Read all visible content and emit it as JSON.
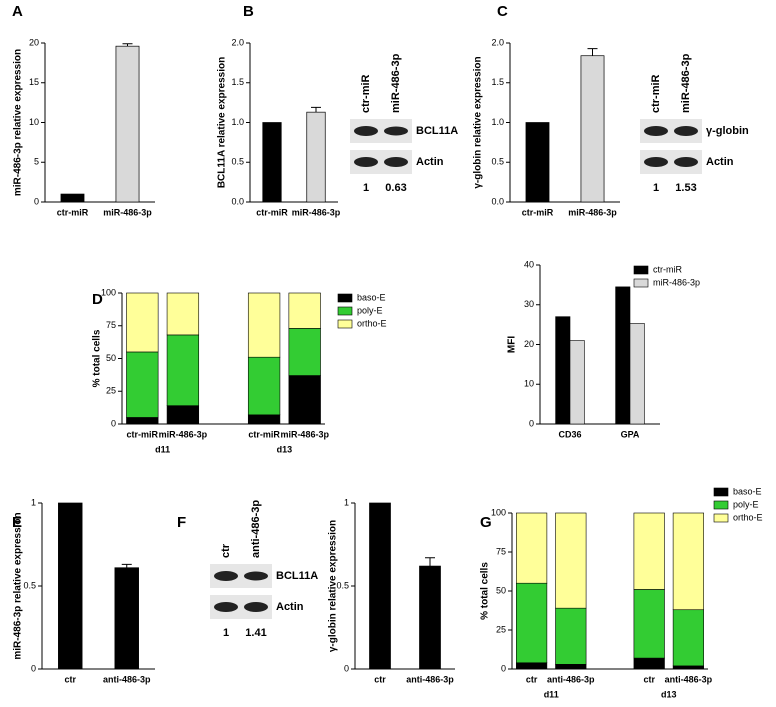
{
  "chart_data": [
    {
      "type": "bar",
      "title": "A",
      "ylabel": "miR-486-3p relative expression",
      "categories": [
        "ctr-miR",
        "miR-486-3p"
      ],
      "values": [
        1,
        19.6
      ],
      "errors": [
        null,
        0.3
      ],
      "colors": [
        "#000000",
        "#d9d9d9"
      ],
      "ylim": [
        0,
        20
      ],
      "yticks": [
        0,
        5,
        10,
        15,
        20
      ]
    },
    {
      "type": "bar",
      "title": "B",
      "ylabel": "BCL11A relative expression",
      "categories": [
        "ctr-miR",
        "miR-486-3p"
      ],
      "values": [
        1,
        1.13
      ],
      "errors": [
        null,
        0.06
      ],
      "colors": [
        "#000000",
        "#d9d9d9"
      ],
      "ylim": [
        0,
        2
      ],
      "yticks": [
        {
          "value": 0,
          "label": "0.0"
        },
        0.5,
        {
          "value": 1,
          "label": "1.0"
        },
        1.5,
        {
          "value": 2,
          "label": "2.0"
        }
      ]
    },
    {
      "type": "bar",
      "title": "C",
      "ylabel": "γ-globin relative expression",
      "categories": [
        "ctr-miR",
        "miR-486-3p"
      ],
      "values": [
        1,
        1.84
      ],
      "errors": [
        null,
        0.09
      ],
      "colors": [
        "#000000",
        "#d9d9d9"
      ],
      "ylim": [
        0,
        2
      ],
      "yticks": [
        {
          "value": 0,
          "label": "0.0"
        },
        0.5,
        {
          "value": 1,
          "label": "1.0"
        },
        1.5,
        {
          "value": 2,
          "label": "2.0"
        }
      ]
    },
    {
      "type": "stacked_bar",
      "title": "D",
      "ylabel": "% total cells",
      "categories": [
        "ctr-miR",
        "miR-486-3p",
        "ctr-miR",
        "miR-486-3p"
      ],
      "groups": [
        "d11",
        "d13"
      ],
      "series": [
        {
          "name": "baso-E",
          "color": "#000000",
          "values": [
            5,
            14,
            7,
            37
          ]
        },
        {
          "name": "poly-E",
          "color": "#33cc33",
          "values": [
            50,
            54,
            44,
            36
          ]
        },
        {
          "name": "ortho-E",
          "color": "#ffff99",
          "values": [
            45,
            32,
            49,
            27
          ]
        }
      ],
      "ylim": [
        0,
        100
      ],
      "yticks": [
        0,
        25,
        50,
        75,
        100
      ]
    },
    {
      "type": "grouped_bar",
      "ylabel": "MFI",
      "categories": [
        "CD36",
        "GPA"
      ],
      "series": [
        {
          "name": "ctr-miR",
          "color": "#000000",
          "values": [
            27,
            34.5
          ]
        },
        {
          "name": "miR-486-3p",
          "color": "#d9d9d9",
          "values": [
            21,
            25.3
          ]
        }
      ],
      "ylim": [
        0,
        40
      ],
      "yticks": [
        0,
        10,
        20,
        30,
        40
      ]
    },
    {
      "type": "bar",
      "title": "E",
      "ylabel": "miR-486-3p relative expression",
      "categories": [
        "ctr",
        "anti-486-3p"
      ],
      "values": [
        1,
        0.61
      ],
      "errors": [
        null,
        0.02
      ],
      "colors": [
        "#000000",
        "#000000"
      ],
      "ylim": [
        0,
        1
      ],
      "yticks": [
        0,
        0.5,
        1
      ]
    },
    {
      "type": "bar",
      "title": "F",
      "ylabel": "γ-globin relative expression",
      "categories": [
        "ctr",
        "anti-486-3p"
      ],
      "values": [
        1,
        0.62
      ],
      "errors": [
        null,
        0.05
      ],
      "colors": [
        "#000000",
        "#000000"
      ],
      "ylim": [
        0,
        1
      ],
      "yticks": [
        0,
        0.5,
        1
      ]
    },
    {
      "type": "stacked_bar",
      "title": "G",
      "ylabel": "% total cells",
      "categories": [
        "ctr",
        "anti-486-3p",
        "ctr",
        "anti-486-3p"
      ],
      "groups": [
        "d11",
        "d13"
      ],
      "series": [
        {
          "name": "baso-E",
          "color": "#000000",
          "values": [
            4,
            3,
            7,
            2
          ]
        },
        {
          "name": "poly-E",
          "color": "#33cc33",
          "values": [
            51,
            36,
            44,
            36
          ]
        },
        {
          "name": "ortho-E",
          "color": "#ffff99",
          "values": [
            45,
            61,
            49,
            62
          ]
        }
      ],
      "ylim": [
        0,
        100
      ],
      "yticks": [
        0,
        25,
        50,
        75,
        100
      ]
    }
  ],
  "blots": [
    {
      "lanes": [
        "ctr-miR",
        "miR-486-3p"
      ],
      "bands": [
        "BCL11A",
        "Actin"
      ],
      "quantification": [
        1,
        0.63
      ]
    },
    {
      "lanes": [
        "ctr-miR",
        "miR-486-3p"
      ],
      "bands": [
        "γ-globin",
        "Actin"
      ],
      "quantification": [
        1,
        1.53
      ]
    },
    {
      "lanes": [
        "ctr",
        "anti-486-3p"
      ],
      "bands": [
        "BCL11A",
        "Actin"
      ],
      "quantification": [
        1,
        1.41
      ]
    }
  ]
}
